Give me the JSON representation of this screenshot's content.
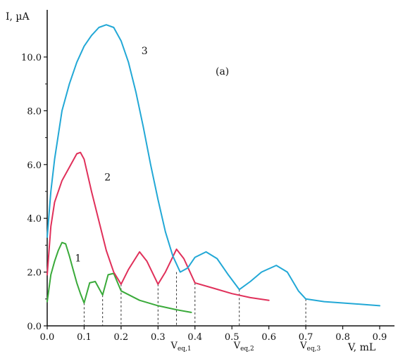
{
  "chart_data": {
    "type": "line",
    "ylabel": "I, µA",
    "xlabel": "V, mL",
    "panel_label": "(a)",
    "xlim": [
      0,
      0.9
    ],
    "ylim": [
      0,
      11.2
    ],
    "x_ticks": [
      "0.0",
      "0.1",
      "0.2",
      "0.3",
      "0.4",
      "0.5",
      "0.6",
      "0.7",
      "0.8",
      "0.9"
    ],
    "y_ticks": [
      "0.0",
      "2.0",
      "4.0",
      "6.0",
      "8.0",
      "10.0"
    ],
    "grid": false,
    "series": [
      {
        "name": "1",
        "color": "#3aaa3a",
        "x": [
          0.0,
          0.01,
          0.02,
          0.03,
          0.04,
          0.05,
          0.06,
          0.07,
          0.08,
          0.09,
          0.1,
          0.115,
          0.13,
          0.15,
          0.165,
          0.18,
          0.2,
          0.25,
          0.3,
          0.35,
          0.39
        ],
        "y": [
          0.9,
          1.9,
          2.4,
          2.8,
          3.1,
          3.05,
          2.6,
          2.1,
          1.6,
          1.2,
          0.85,
          1.6,
          1.65,
          1.15,
          1.9,
          1.95,
          1.3,
          0.95,
          0.75,
          0.6,
          0.5
        ]
      },
      {
        "name": "2",
        "color": "#e0305a",
        "x": [
          0.0,
          0.01,
          0.02,
          0.04,
          0.06,
          0.08,
          0.09,
          0.1,
          0.12,
          0.14,
          0.16,
          0.18,
          0.2,
          0.22,
          0.25,
          0.27,
          0.3,
          0.32,
          0.35,
          0.37,
          0.4,
          0.45,
          0.5,
          0.55,
          0.6
        ],
        "y": [
          1.9,
          3.7,
          4.6,
          5.4,
          5.9,
          6.4,
          6.45,
          6.2,
          5.0,
          3.9,
          2.8,
          2.0,
          1.55,
          2.1,
          2.75,
          2.4,
          1.55,
          2.0,
          2.85,
          2.5,
          1.6,
          1.4,
          1.2,
          1.05,
          0.95
        ]
      },
      {
        "name": "3",
        "color": "#22a8d6",
        "x": [
          0.0,
          0.01,
          0.02,
          0.04,
          0.06,
          0.08,
          0.1,
          0.12,
          0.14,
          0.16,
          0.18,
          0.2,
          0.22,
          0.24,
          0.26,
          0.28,
          0.3,
          0.32,
          0.34,
          0.36,
          0.38,
          0.4,
          0.43,
          0.46,
          0.49,
          0.52,
          0.55,
          0.58,
          0.62,
          0.65,
          0.68,
          0.7,
          0.75,
          0.8,
          0.85,
          0.9
        ],
        "y": [
          3.3,
          5.0,
          6.2,
          8.0,
          9.0,
          9.8,
          10.4,
          10.8,
          11.1,
          11.2,
          11.1,
          10.6,
          9.8,
          8.7,
          7.4,
          6.0,
          4.7,
          3.5,
          2.6,
          2.0,
          2.15,
          2.55,
          2.75,
          2.5,
          1.9,
          1.35,
          1.65,
          2.0,
          2.25,
          2.0,
          1.3,
          1.0,
          0.9,
          0.85,
          0.8,
          0.75
        ]
      }
    ],
    "dashed_markers": [
      {
        "x": 0.1,
        "y": 0.85
      },
      {
        "x": 0.15,
        "y": 1.15
      },
      {
        "x": 0.2,
        "y": 1.55
      },
      {
        "x": 0.3,
        "y": 1.55
      },
      {
        "x": 0.35,
        "y": 2.0
      },
      {
        "x": 0.4,
        "y": 1.6
      },
      {
        "x": 0.52,
        "y": 1.35
      },
      {
        "x": 0.7,
        "y": 1.0
      }
    ],
    "equivalence_labels": [
      {
        "main": "V",
        "sub": "eq,1",
        "x": 0.35
      },
      {
        "main": "V",
        "sub": "eq,2",
        "x": 0.52
      },
      {
        "main": "V",
        "sub": "eq,3",
        "x": 0.7
      }
    ],
    "curve_labels": [
      {
        "text": "1",
        "x": 0.075,
        "y": 2.4
      },
      {
        "text": "2",
        "x": 0.155,
        "y": 5.4
      },
      {
        "text": "3",
        "x": 0.255,
        "y": 10.1
      }
    ]
  }
}
